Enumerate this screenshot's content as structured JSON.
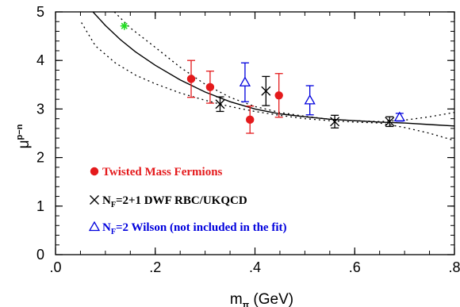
{
  "chart_data": {
    "type": "scatter",
    "xlabel": {
      "main": "m",
      "sub": "π",
      "suffix": " (GeV)"
    },
    "ylabel": {
      "main": "μ",
      "sup": "p−n"
    },
    "xlim": [
      0.0,
      0.8
    ],
    "ylim": [
      0,
      5
    ],
    "xticks": [
      {
        "value": 0.0,
        "label": ".0"
      },
      {
        "value": 0.2,
        "label": ".2"
      },
      {
        "value": 0.4,
        "label": ".4"
      },
      {
        "value": 0.6,
        "label": ".6"
      },
      {
        "value": 0.8,
        "label": ".8"
      }
    ],
    "yticks": [
      {
        "value": 0,
        "label": "0"
      },
      {
        "value": 1,
        "label": "1"
      },
      {
        "value": 2,
        "label": "2"
      },
      {
        "value": 3,
        "label": "3"
      },
      {
        "value": 4,
        "label": "4"
      },
      {
        "value": 5,
        "label": "5"
      }
    ],
    "grid": false,
    "legend_position": "bottom-left",
    "series": [
      {
        "name": "Twisted Mass Fermions",
        "marker": "filled-circle",
        "color": "#e41a1c",
        "points": [
          {
            "x": 0.272,
            "y": 3.62,
            "err": 0.38
          },
          {
            "x": 0.31,
            "y": 3.45,
            "err": 0.33
          },
          {
            "x": 0.39,
            "y": 2.78,
            "err": 0.28
          },
          {
            "x": 0.448,
            "y": 3.28,
            "err": 0.45
          }
        ]
      },
      {
        "name_parts": [
          "N",
          "F",
          "=2+1 DWF RBC/UKQCD"
        ],
        "marker": "x",
        "color": "#000000",
        "points": [
          {
            "x": 0.33,
            "y": 3.1,
            "err": 0.15
          },
          {
            "x": 0.422,
            "y": 3.37,
            "err": 0.3
          },
          {
            "x": 0.56,
            "y": 2.74,
            "err": 0.13
          },
          {
            "x": 0.67,
            "y": 2.74,
            "err": 0.1
          }
        ]
      },
      {
        "name_parts": [
          "N",
          "F",
          "=2 Wilson (not included in the fit)"
        ],
        "marker": "open-triangle",
        "color": "#0000dd",
        "points": [
          {
            "x": 0.38,
            "y": 3.55,
            "err": 0.4
          },
          {
            "x": 0.51,
            "y": 3.18,
            "err": 0.3
          },
          {
            "x": 0.69,
            "y": 2.83,
            "err": 0.08
          }
        ]
      },
      {
        "marker": "star",
        "color": "#22dd22",
        "points": [
          {
            "x": 0.138,
            "y": 4.71
          }
        ]
      }
    ],
    "fit_curve": {
      "style": "solid",
      "color": "#000000",
      "points": [
        [
          0.075,
          5.0
        ],
        [
          0.1,
          4.72
        ],
        [
          0.13,
          4.43
        ],
        [
          0.16,
          4.18
        ],
        [
          0.2,
          3.9
        ],
        [
          0.25,
          3.6
        ],
        [
          0.3,
          3.35
        ],
        [
          0.35,
          3.15
        ],
        [
          0.4,
          3.0
        ],
        [
          0.45,
          2.9
        ],
        [
          0.5,
          2.84
        ],
        [
          0.55,
          2.79
        ],
        [
          0.6,
          2.76
        ],
        [
          0.65,
          2.73
        ],
        [
          0.7,
          2.71
        ],
        [
          0.75,
          2.68
        ],
        [
          0.8,
          2.65
        ]
      ]
    },
    "error_band": [
      {
        "style": "dotted",
        "color": "#000000",
        "points": [
          [
            0.118,
            5.0
          ],
          [
            0.15,
            4.67
          ],
          [
            0.2,
            4.27
          ],
          [
            0.25,
            3.86
          ],
          [
            0.3,
            3.51
          ],
          [
            0.35,
            3.24
          ],
          [
            0.4,
            3.05
          ],
          [
            0.45,
            2.93
          ],
          [
            0.5,
            2.85
          ],
          [
            0.55,
            2.79
          ],
          [
            0.6,
            2.76
          ],
          [
            0.65,
            2.74
          ],
          [
            0.7,
            2.77
          ],
          [
            0.75,
            2.84
          ],
          [
            0.8,
            2.93
          ]
        ]
      },
      {
        "style": "dotted",
        "color": "#000000",
        "points": [
          [
            0.052,
            4.78
          ],
          [
            0.08,
            4.3
          ],
          [
            0.12,
            3.95
          ],
          [
            0.16,
            3.7
          ],
          [
            0.2,
            3.52
          ],
          [
            0.25,
            3.33
          ],
          [
            0.3,
            3.18
          ],
          [
            0.35,
            3.05
          ],
          [
            0.4,
            2.95
          ],
          [
            0.45,
            2.87
          ],
          [
            0.5,
            2.8
          ],
          [
            0.55,
            2.76
          ],
          [
            0.6,
            2.73
          ],
          [
            0.65,
            2.71
          ],
          [
            0.7,
            2.62
          ],
          [
            0.75,
            2.5
          ],
          [
            0.8,
            2.35
          ]
        ]
      }
    ]
  }
}
